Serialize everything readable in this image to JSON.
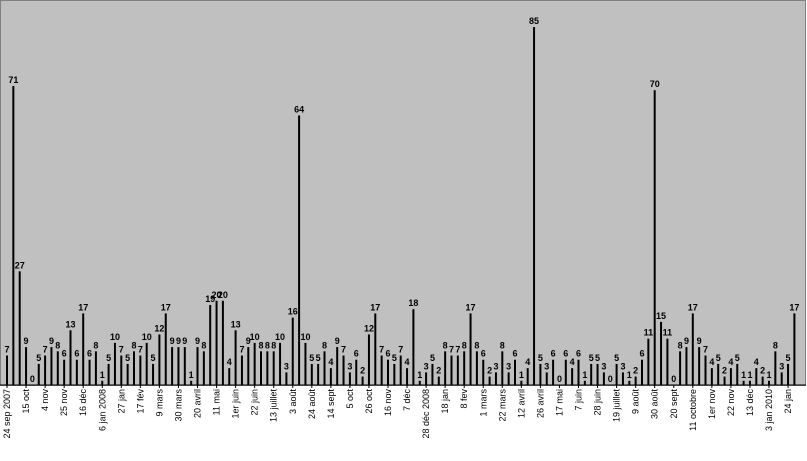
{
  "chart_data": {
    "type": "bar",
    "color": "#000000",
    "background": "#c0c0c0",
    "categories": [
      "24 sep 2007",
      null,
      null,
      "15 oct",
      null,
      null,
      "4 nov",
      null,
      null,
      "25 nov",
      null,
      null,
      "16 déc",
      null,
      null,
      "6 jan 2008",
      null,
      null,
      "27 jan",
      null,
      null,
      "17 fév",
      null,
      null,
      "9 mars",
      null,
      null,
      "30 mars",
      null,
      null,
      "20 avril",
      null,
      null,
      "11 mai",
      null,
      null,
      "1er juin",
      null,
      null,
      "22 juin",
      null,
      null,
      "13 juillet",
      null,
      null,
      "3 août",
      null,
      null,
      "24 août",
      null,
      null,
      "14 sept",
      null,
      null,
      "5 oct",
      null,
      null,
      "26 oct",
      null,
      null,
      "16 nov",
      null,
      null,
      "7 déc",
      null,
      null,
      "28 déc 2008",
      null,
      null,
      "18 jan",
      null,
      null,
      "8 fev",
      null,
      null,
      "1 mars",
      null,
      null,
      "22 mars",
      null,
      null,
      "12 avril",
      null,
      null,
      "26 avril",
      null,
      null,
      "17 mai",
      null,
      null,
      "7 juin",
      null,
      null,
      "28 juin",
      null,
      null,
      "19 juillet",
      null,
      null,
      "9 août",
      null,
      null,
      "30 août",
      null,
      null,
      "20 sept",
      null,
      null,
      "11 octobre",
      null,
      null,
      "1er nov",
      null,
      null,
      "22 nov",
      null,
      null,
      "13 déc",
      null,
      null,
      "3 jan 2010",
      null,
      null,
      "24 jan",
      null
    ],
    "values": [
      7,
      71,
      27,
      9,
      0,
      5,
      7,
      9,
      8,
      6,
      13,
      6,
      17,
      6,
      8,
      1,
      5,
      10,
      7,
      5,
      8,
      7,
      10,
      5,
      12,
      17,
      9,
      9,
      9,
      1,
      9,
      8,
      19,
      20,
      20,
      4,
      13,
      7,
      9,
      10,
      8,
      8,
      8,
      10,
      3,
      16,
      64,
      10,
      5,
      5,
      8,
      4,
      9,
      7,
      3,
      6,
      2,
      12,
      17,
      7,
      6,
      5,
      7,
      4,
      18,
      1,
      3,
      5,
      2,
      8,
      7,
      7,
      8,
      17,
      8,
      6,
      2,
      3,
      8,
      3,
      6,
      1,
      4,
      85,
      5,
      3,
      6,
      0,
      6,
      4,
      6,
      1,
      5,
      5,
      3,
      0,
      5,
      3,
      1,
      2,
      6,
      11,
      70,
      15,
      11,
      0,
      8,
      9,
      17,
      9,
      7,
      4,
      5,
      2,
      4,
      5,
      1,
      1,
      4,
      2,
      1,
      8,
      3,
      5,
      17
    ],
    "ylim": [
      0,
      90
    ]
  }
}
